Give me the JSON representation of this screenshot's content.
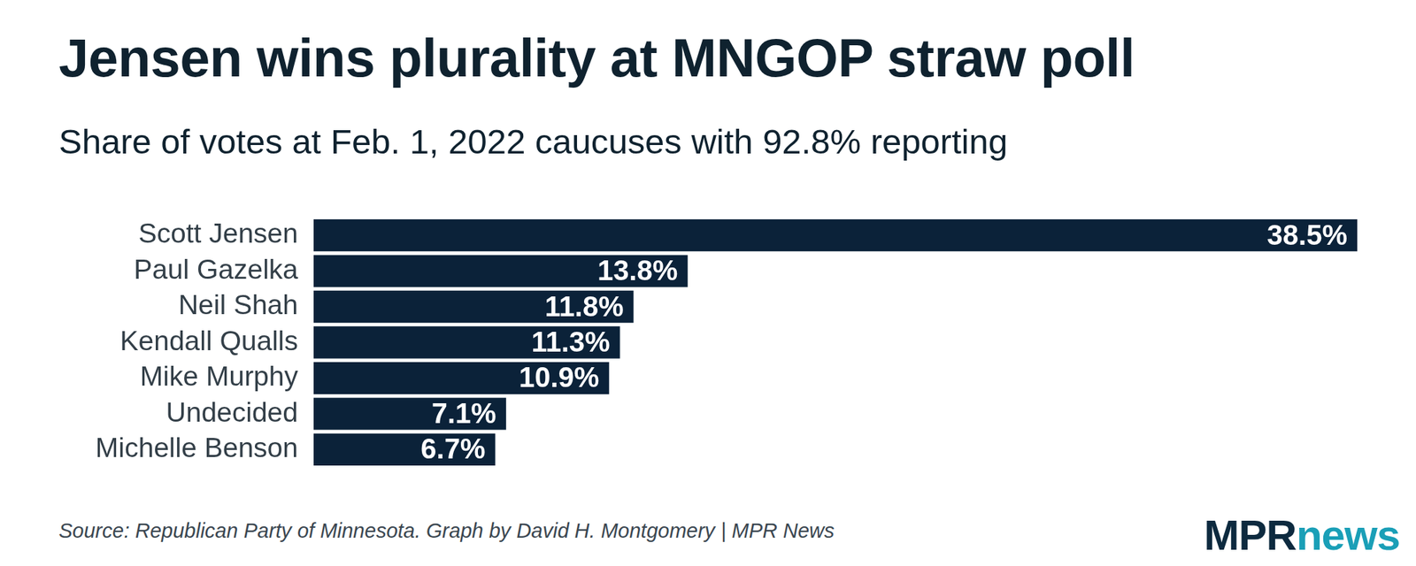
{
  "chart_data": {
    "type": "bar",
    "orientation": "horizontal",
    "title": "Jensen wins plurality at MNGOP straw poll",
    "subtitle": "Share of votes at Feb. 1, 2022 caucuses with 92.8% reporting",
    "categories": [
      "Scott Jensen",
      "Paul Gazelka",
      "Neil Shah",
      "Kendall Qualls",
      "Mike Murphy",
      "Undecided",
      "Michelle Benson"
    ],
    "values": [
      38.5,
      13.8,
      11.8,
      11.3,
      10.9,
      7.1,
      6.7
    ],
    "value_labels": [
      "38.5%",
      "13.8%",
      "11.8%",
      "11.3%",
      "10.9%",
      "7.1%",
      "6.7%"
    ],
    "color": "#0b2239",
    "xlim": [
      0,
      38.5
    ],
    "grid": false,
    "data_labels": true,
    "tick_labels": "y",
    "source": "Source: Republican Party of Minnesota. Graph by David H. Montgomery | MPR News",
    "logo": [
      "MPR",
      "news"
    ]
  }
}
